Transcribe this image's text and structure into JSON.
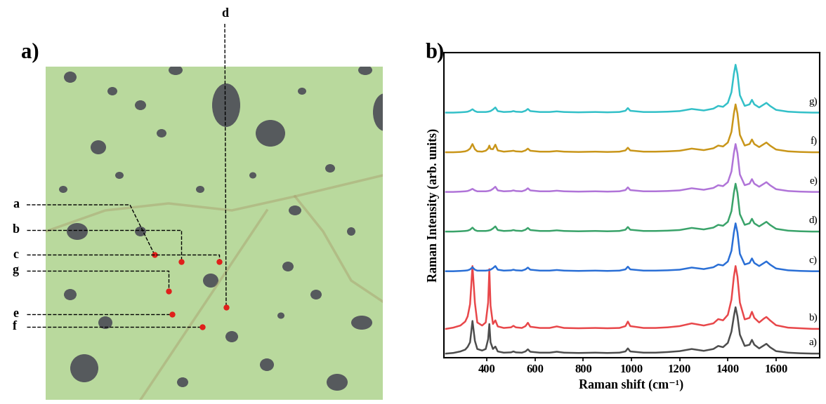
{
  "chart_data": [
    {
      "type": "image",
      "title": "a)",
      "point_labels": [
        "a",
        "b",
        "c",
        "d",
        "e",
        "f",
        "g"
      ]
    },
    {
      "type": "line",
      "title": "b)",
      "x_label": "Raman shift (cm⁻¹)",
      "y_label": "Raman Intensity (arb. units)",
      "x": [
        230,
        260,
        290,
        310,
        320,
        330,
        340,
        350,
        360,
        380,
        395,
        405,
        410,
        415,
        425,
        435,
        445,
        470,
        500,
        510,
        520,
        545,
        560,
        570,
        580,
        620,
        660,
        690,
        720,
        780,
        850,
        900,
        950,
        975,
        985,
        995,
        1050,
        1100,
        1150,
        1200,
        1250,
        1300,
        1340,
        1360,
        1380,
        1400,
        1415,
        1425,
        1432,
        1440,
        1450,
        1470,
        1490,
        1500,
        1510,
        1530,
        1550,
        1560,
        1575,
        1600,
        1650,
        1700,
        1750,
        1780
      ],
      "xlim": [
        220,
        1780
      ],
      "xticks": [
        400,
        600,
        800,
        1000,
        1200,
        1400,
        1600
      ],
      "ylim": [
        0,
        100
      ],
      "yticks": [],
      "tick_labels": "x",
      "series": [
        {
          "name": "a)",
          "color": "#4d4d4d",
          "values": [
            1.3,
            1.5,
            2.0,
            2.6,
            3.5,
            5.0,
            12.0,
            5.5,
            2.8,
            2.3,
            2.8,
            6.0,
            11.0,
            5.0,
            2.8,
            3.6,
            2.0,
            1.6,
            1.7,
            2.0,
            1.7,
            1.6,
            2.0,
            2.7,
            1.9,
            1.6,
            1.6,
            1.9,
            1.6,
            1.5,
            1.6,
            1.5,
            1.6,
            2.0,
            3.0,
            2.0,
            1.6,
            1.6,
            1.8,
            2.1,
            2.8,
            2.2,
            2.8,
            3.8,
            3.4,
            4.8,
            8.5,
            13.5,
            16.5,
            13.5,
            7.5,
            3.8,
            4.2,
            5.8,
            4.2,
            3.0,
            4.0,
            4.5,
            3.4,
            2.1,
            1.6,
            1.4,
            1.3,
            1.3
          ]
        },
        {
          "name": "b)",
          "color": "#e8474a",
          "values": [
            9.4,
            9.8,
            10.5,
            11.8,
            13.5,
            17.5,
            30.0,
            18.0,
            11.5,
            10.5,
            11.5,
            18.0,
            29.0,
            17.0,
            11.0,
            12.2,
            10.2,
            9.7,
            9.9,
            10.4,
            9.9,
            9.7,
            10.3,
            11.4,
            10.1,
            9.7,
            9.7,
            10.2,
            9.7,
            9.6,
            9.7,
            9.6,
            9.7,
            10.3,
            11.8,
            10.3,
            9.7,
            9.7,
            9.9,
            10.3,
            11.2,
            10.5,
            11.2,
            12.6,
            12.2,
            14.0,
            19.0,
            26.5,
            30.0,
            26.5,
            18.0,
            12.5,
            13.0,
            15.0,
            13.0,
            11.5,
            12.8,
            13.3,
            12.2,
            10.6,
            9.8,
            9.6,
            9.4,
            9.4
          ]
        },
        {
          "name": "c)",
          "color": "#2a6fd6",
          "values": [
            28.3,
            28.3,
            28.4,
            28.5,
            28.6,
            28.9,
            29.6,
            28.8,
            28.5,
            28.5,
            28.5,
            28.6,
            28.7,
            28.8,
            29.3,
            30.0,
            28.8,
            28.5,
            28.6,
            28.8,
            28.6,
            28.5,
            28.9,
            29.5,
            28.8,
            28.5,
            28.5,
            28.7,
            28.5,
            28.4,
            28.5,
            28.4,
            28.5,
            28.9,
            29.8,
            28.9,
            28.5,
            28.5,
            28.6,
            28.8,
            29.5,
            29.0,
            29.6,
            30.5,
            30.2,
            31.5,
            35,
            41,
            44,
            41,
            34,
            30.5,
            31,
            32.5,
            31,
            30,
            31,
            31.5,
            30.5,
            29.2,
            28.6,
            28.4,
            28.3,
            28.3
          ]
        },
        {
          "name": "d)",
          "color": "#3aa36a",
          "values": [
            41.3,
            41.3,
            41.4,
            41.5,
            41.6,
            41.9,
            42.6,
            41.8,
            41.5,
            41.5,
            41.5,
            41.6,
            41.7,
            41.8,
            42.3,
            43.0,
            41.8,
            41.5,
            41.6,
            41.8,
            41.6,
            41.5,
            41.9,
            42.5,
            41.8,
            41.5,
            41.5,
            41.7,
            41.5,
            41.4,
            41.5,
            41.4,
            41.5,
            41.9,
            42.8,
            41.9,
            41.5,
            41.5,
            41.6,
            41.8,
            42.5,
            42.0,
            42.6,
            43.5,
            43.2,
            44.5,
            48,
            54,
            57,
            54,
            47,
            43.5,
            44,
            45.5,
            44,
            43,
            44,
            44.5,
            43.5,
            42.2,
            41.6,
            41.4,
            41.3,
            41.3
          ]
        },
        {
          "name": "e)",
          "color": "#b074d8",
          "values": [
            54.3,
            54.3,
            54.4,
            54.5,
            54.6,
            54.9,
            55.3,
            54.8,
            54.5,
            54.5,
            54.5,
            54.6,
            54.7,
            54.8,
            55.3,
            56.0,
            54.8,
            54.5,
            54.6,
            54.8,
            54.6,
            54.5,
            54.9,
            55.5,
            54.8,
            54.5,
            54.5,
            54.7,
            54.5,
            54.4,
            54.5,
            54.4,
            54.5,
            54.9,
            55.8,
            54.9,
            54.5,
            54.5,
            54.6,
            54.8,
            55.5,
            55.0,
            55.6,
            56.5,
            56.2,
            57.5,
            61,
            67,
            70,
            67,
            60,
            56.5,
            57,
            58.5,
            57,
            56,
            57,
            57.5,
            56.5,
            55.2,
            54.6,
            54.4,
            54.3,
            54.3
          ]
        },
        {
          "name": "f)",
          "color": "#c9961a",
          "values": [
            67.3,
            67.3,
            67.4,
            67.6,
            67.9,
            68.5,
            70.0,
            68.3,
            67.6,
            67.5,
            67.8,
            68.5,
            69.5,
            68.4,
            68.3,
            69.8,
            67.9,
            67.5,
            67.7,
            67.8,
            67.6,
            67.5,
            67.9,
            68.5,
            67.8,
            67.5,
            67.5,
            67.7,
            67.5,
            67.4,
            67.5,
            67.4,
            67.5,
            67.9,
            68.8,
            67.9,
            67.5,
            67.5,
            67.6,
            67.8,
            68.5,
            68.0,
            68.6,
            69.5,
            69.2,
            70.5,
            74,
            80,
            83,
            80,
            73,
            69.5,
            70,
            71.5,
            70,
            69,
            70,
            70.5,
            69.5,
            68.2,
            67.6,
            67.4,
            67.3,
            67.3
          ]
        },
        {
          "name": "g)",
          "color": "#33c0c8",
          "values": [
            80.3,
            80.3,
            80.4,
            80.5,
            80.6,
            80.9,
            81.4,
            80.8,
            80.5,
            80.5,
            80.5,
            80.6,
            80.7,
            80.8,
            81.3,
            82.0,
            80.8,
            80.5,
            80.6,
            80.8,
            80.6,
            80.5,
            80.9,
            81.5,
            80.8,
            80.5,
            80.5,
            80.7,
            80.5,
            80.4,
            80.5,
            80.4,
            80.5,
            80.9,
            81.8,
            80.9,
            80.5,
            80.5,
            80.6,
            80.8,
            81.5,
            81.0,
            81.6,
            82.5,
            82.2,
            83.5,
            87,
            93,
            96,
            93,
            86,
            82.5,
            83,
            84.5,
            83,
            82,
            83,
            83.5,
            82.5,
            81.2,
            80.6,
            80.4,
            80.3,
            80.3
          ]
        }
      ]
    }
  ]
}
